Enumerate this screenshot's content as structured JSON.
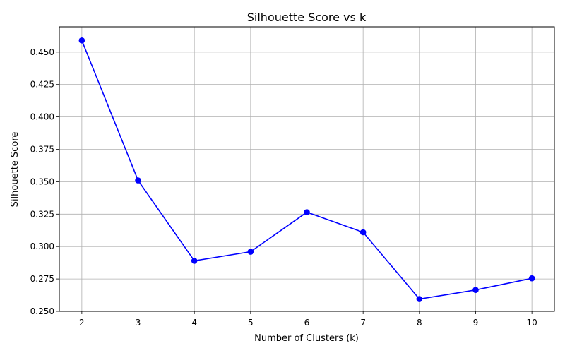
{
  "chart_data": {
    "type": "line",
    "title": "Silhouette Score vs k",
    "xlabel": "Number of Clusters (k)",
    "ylabel": "Silhouette Score",
    "x": [
      2,
      3,
      4,
      5,
      6,
      7,
      8,
      9,
      10
    ],
    "series": [
      {
        "values": [
          0.459,
          0.351,
          0.289,
          0.296,
          0.3265,
          0.311,
          0.2595,
          0.2665,
          0.2755
        ],
        "color": "#0000ff",
        "marker": "circle"
      }
    ],
    "xlim": [
      1.6,
      10.4
    ],
    "ylim": [
      0.25,
      0.4695
    ],
    "xticks": [
      "2",
      "3",
      "4",
      "5",
      "6",
      "7",
      "8",
      "9",
      "10"
    ],
    "yticks": [
      "0.250",
      "0.275",
      "0.300",
      "0.325",
      "0.350",
      "0.375",
      "0.400",
      "0.425",
      "0.450"
    ],
    "grid": true,
    "grid_color": "#b0b0b0"
  }
}
